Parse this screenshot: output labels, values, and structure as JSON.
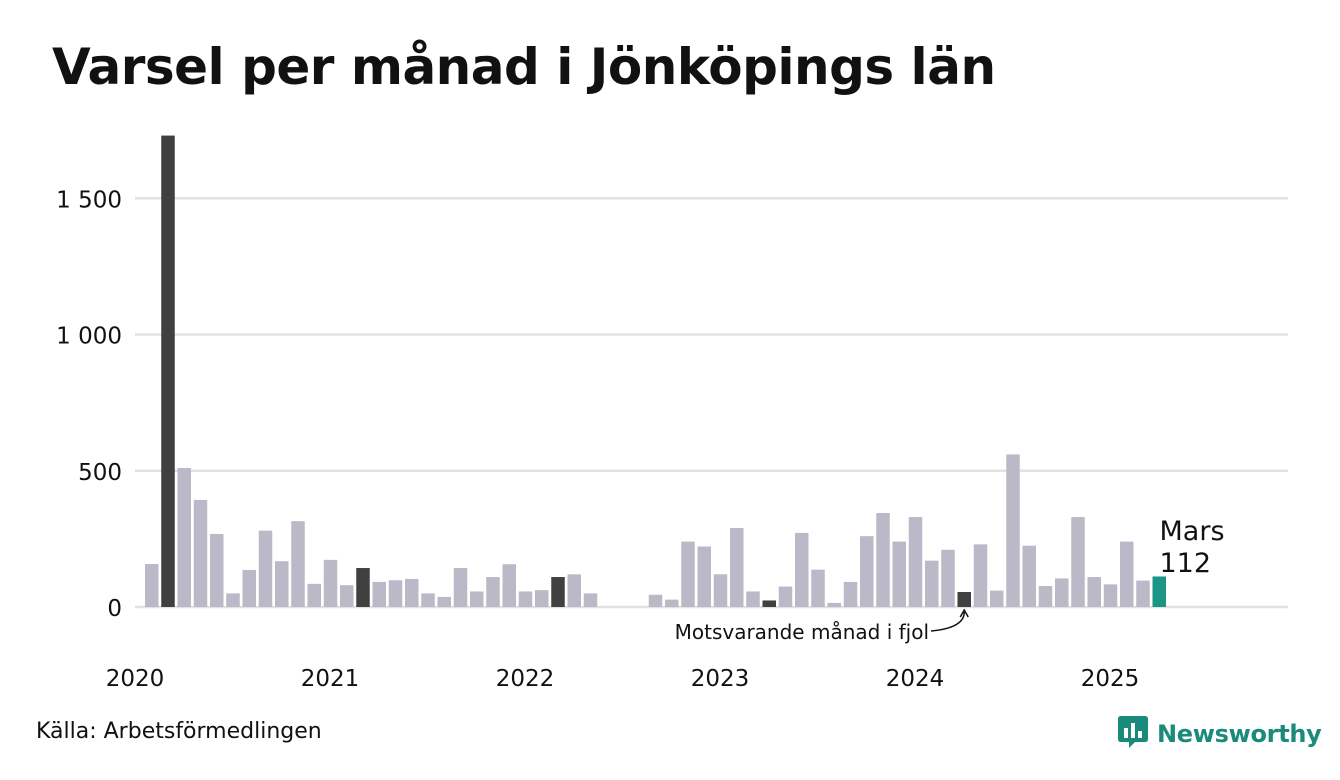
{
  "title": "Varsel per månad i Jönköpings län",
  "source": "Källa: Arbetsförmedlingen",
  "brand": {
    "name": "Newsworthy",
    "icon": "newsworthy-logo-icon",
    "color": "#1a8a7a"
  },
  "colors": {
    "bar_default": "#bbb9c7",
    "bar_march": "#404040",
    "bar_latest": "#1a9586",
    "grid": "#e2e2e2",
    "text": "#111111"
  },
  "chart_data": {
    "type": "bar",
    "ylim": [
      0,
      1750
    ],
    "yticks": [
      0,
      500,
      1000,
      1500
    ],
    "ytick_labels": [
      "0",
      "500",
      "1 000",
      "1 500"
    ],
    "grid": true,
    "x_labels": [
      "2020",
      "2021",
      "2022",
      "2023",
      "2024",
      "2025"
    ],
    "series": [
      {
        "values": [
          158,
          1730,
          510,
          393,
          268,
          50,
          136,
          280,
          168,
          315,
          85,
          173,
          80,
          143,
          92,
          98,
          103,
          50,
          37,
          143,
          57,
          110,
          157,
          57,
          62,
          110,
          120,
          50,
          null,
          null,
          null,
          45,
          27,
          240,
          222,
          120,
          290,
          57,
          24,
          75,
          272,
          137,
          15,
          92,
          260,
          345,
          240,
          330,
          170,
          210,
          55,
          230,
          60,
          560,
          225,
          77,
          105,
          330,
          110,
          83,
          240,
          97,
          112
        ],
        "highlight_march": [
          1,
          13,
          25,
          38,
          50
        ],
        "latest_index": 62
      }
    ],
    "annotations": {
      "latest": {
        "month": "Mars",
        "value": "112"
      },
      "previous_year": {
        "text": "Motsvarande månad i fjol"
      }
    }
  }
}
